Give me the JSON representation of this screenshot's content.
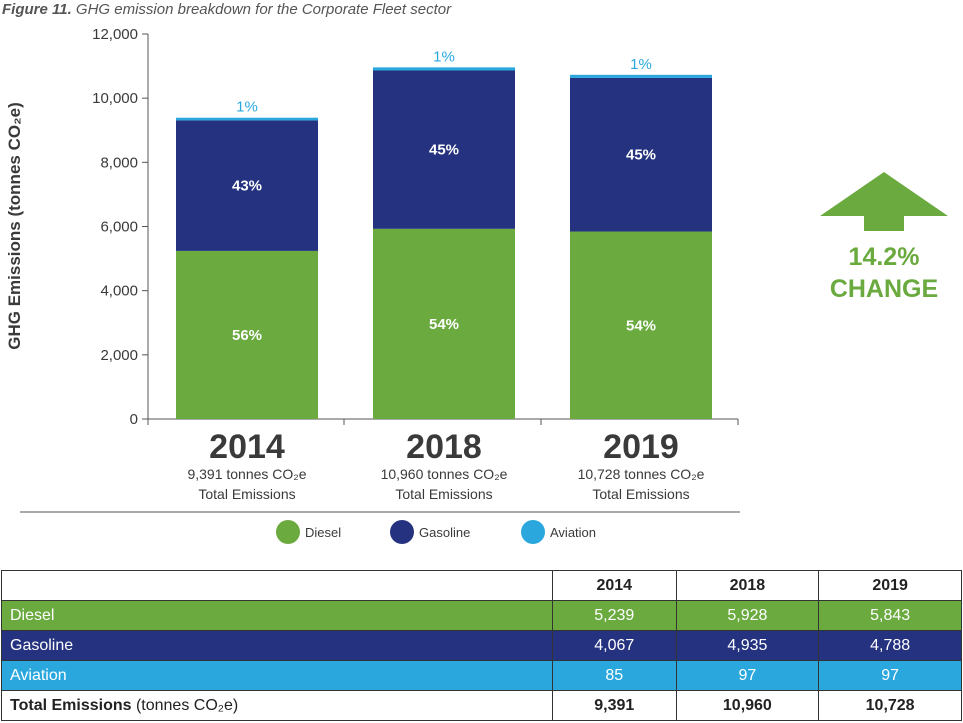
{
  "caption": {
    "figure": "Figure 11.",
    "title": "GHG emission breakdown for the Corporate Fleet sector"
  },
  "chart_data": {
    "type": "bar",
    "stacked": true,
    "title": "GHG emission breakdown for the Corporate Fleet sector",
    "ylabel": "GHG Emissions (tonnes CO₂e)",
    "ylim": [
      0,
      12000
    ],
    "yticks": [
      "0",
      "2,000",
      "4,000",
      "6,000",
      "8,000",
      "10,000",
      "12,000"
    ],
    "ytick_values": [
      0,
      2000,
      4000,
      6000,
      8000,
      10000,
      12000
    ],
    "categories": [
      "2014",
      "2018",
      "2019"
    ],
    "category_lines": [
      [
        "9,391 tonnes CO₂e",
        "Total Emissions"
      ],
      [
        "10,960 tonnes CO₂e",
        "Total Emissions"
      ],
      [
        "10,728 tonnes CO₂e",
        "Total Emissions"
      ]
    ],
    "series": [
      {
        "name": "Diesel",
        "color": "#6aaa3f",
        "values": [
          5239,
          5928,
          5843
        ],
        "labels": [
          "56%",
          "54%",
          "54%"
        ]
      },
      {
        "name": "Gasoline",
        "color": "#24327f",
        "values": [
          4067,
          4935,
          4788
        ],
        "labels": [
          "43%",
          "45%",
          "45%"
        ]
      },
      {
        "name": "Aviation",
        "color": "#2aa8de",
        "values": [
          85,
          97,
          97
        ],
        "labels": [
          "1%",
          "1%",
          "1%"
        ]
      }
    ],
    "legend_position": "bottom",
    "annotation": {
      "value": "14.2%",
      "text": "CHANGE",
      "icon": "up-arrow-icon",
      "color": "#6aaa3f"
    }
  },
  "table": {
    "headers": [
      "",
      "2014",
      "2018",
      "2019"
    ],
    "rows": [
      {
        "label": "Diesel",
        "values": [
          "5,239",
          "5,928",
          "5,843"
        ]
      },
      {
        "label": "Gasoline",
        "values": [
          "4,067",
          "4,935",
          "4,788"
        ]
      },
      {
        "label": "Aviation",
        "values": [
          "85",
          "97",
          "97"
        ]
      }
    ],
    "total": {
      "label_bold": "Total Emissions",
      "label_rest": " (tonnes CO₂e)",
      "values": [
        "9,391",
        "10,960",
        "10,728"
      ]
    }
  }
}
